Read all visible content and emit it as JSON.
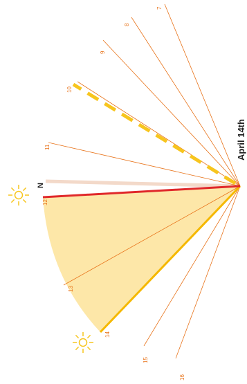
{
  "date_label": "April 14th",
  "north_label": "N",
  "hour_labels": [
    "7",
    "8",
    "9",
    "10",
    "11",
    "12",
    "13",
    "14",
    "15",
    "16"
  ],
  "icons": [
    "sun-icon",
    "sun-icon"
  ],
  "colors": {
    "hour_line": "#e8731a",
    "hour_label": "#e8731a",
    "north_line": "#e0282a",
    "shade_fill": "#fde6a3",
    "shade_edge": "#f5b800",
    "dash_line": "#f7c51e",
    "sun": "#f7c51e",
    "text": "#222222"
  }
}
